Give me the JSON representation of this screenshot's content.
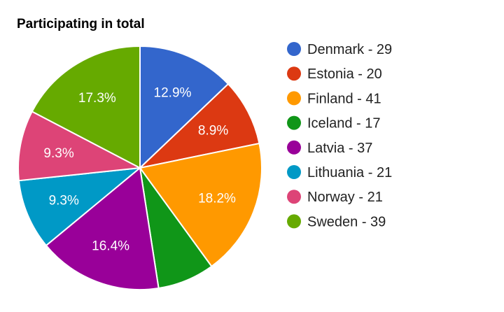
{
  "chart_data": {
    "type": "pie",
    "title": "Participating in total",
    "legend_position": "right",
    "slices": [
      {
        "legend": "Denmark - 29",
        "value": 29,
        "label": "12.9%",
        "color": "#3366cc"
      },
      {
        "legend": "Estonia - 20",
        "value": 20,
        "label": "8.9%",
        "color": "#dc3912"
      },
      {
        "legend": "Finland - 41",
        "value": 41,
        "label": "18.2%",
        "color": "#ff9900"
      },
      {
        "legend": "Iceland - 17",
        "value": 17,
        "label": "",
        "color": "#109618"
      },
      {
        "legend": "Latvia - 37",
        "value": 37,
        "label": "16.4%",
        "color": "#990099"
      },
      {
        "legend": "Lithuania - 21",
        "value": 21,
        "label": "9.3%",
        "color": "#0099c6"
      },
      {
        "legend": "Norway - 21",
        "value": 21,
        "label": "9.3%",
        "color": "#dd4477"
      },
      {
        "legend": "Sweden - 39",
        "value": 39,
        "label": "17.3%",
        "color": "#66aa00"
      }
    ]
  }
}
